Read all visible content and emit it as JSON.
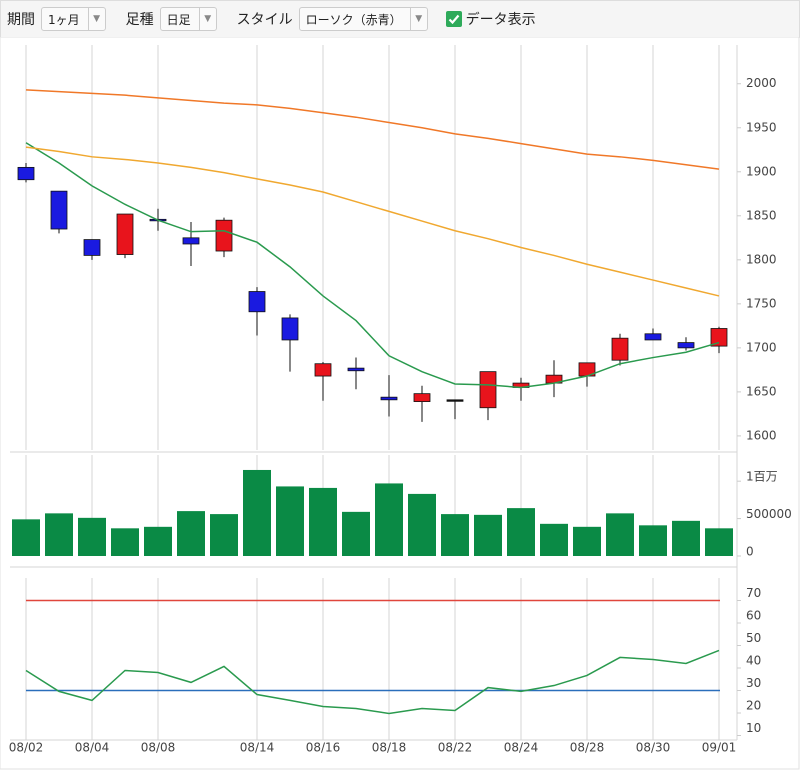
{
  "toolbar": {
    "period_label": "期間",
    "period_value": "1ヶ月",
    "bar_label": "足種",
    "bar_value": "日足",
    "style_label": "スタイル",
    "style_value": "ローソク（赤青）",
    "data_display": "データ表示",
    "data_display_checked": true
  },
  "chart_data": [
    {
      "type": "candlestick",
      "categories": [
        "08/02",
        null,
        "08/04",
        null,
        "08/08",
        null,
        null,
        "08/14",
        null,
        "08/16",
        null,
        "08/18",
        null,
        "08/22",
        null,
        "08/24",
        null,
        "08/28",
        null,
        "08/30",
        null,
        "09/01"
      ],
      "open": [
        1905,
        1878,
        1823,
        1806,
        1846,
        1825,
        1810,
        1764,
        1734,
        1668,
        1677,
        1644,
        1639,
        1641,
        1632,
        1655,
        1660,
        1668,
        1686,
        1716,
        1706,
        1702
      ],
      "high": [
        1910,
        1878,
        1823,
        1852,
        1858,
        1843,
        1848,
        1769,
        1738,
        1684,
        1689,
        1669,
        1657,
        1641,
        1673,
        1666,
        1686,
        1683,
        1716,
        1722,
        1712,
        1724
      ],
      "low": [
        1888,
        1830,
        1800,
        1802,
        1833,
        1793,
        1803,
        1714,
        1673,
        1640,
        1653,
        1622,
        1616,
        1619,
        1618,
        1640,
        1644,
        1656,
        1680,
        1709,
        1697,
        1694
      ],
      "close": [
        1891,
        1835,
        1805,
        1852,
        1845,
        1818,
        1845,
        1741,
        1709,
        1682,
        1674,
        1641,
        1648,
        1641,
        1673,
        1660,
        1669,
        1683,
        1711,
        1709,
        1700,
        1722
      ],
      "up_color": "#e8141c",
      "down_color": "#1a1ae0",
      "flat_color": "#111111",
      "series": [
        {
          "color": "#2a9a4e",
          "values": [
            1933,
            1910,
            1884,
            1863,
            1845,
            1832,
            1833,
            1820,
            1792,
            1759,
            1731,
            1691,
            1673,
            1659,
            1658,
            1655,
            1660,
            1668,
            1682,
            1689,
            1695,
            1706
          ]
        },
        {
          "color": "#f0a830",
          "values": [
            1928,
            1923,
            1917,
            1914,
            1910,
            1905,
            1899,
            1892,
            1885,
            1877,
            1866,
            1855,
            1844,
            1833,
            1824,
            1814,
            1805,
            1795,
            1786,
            1777,
            1768,
            1759
          ]
        },
        {
          "color": "#f07828",
          "values": [
            1993,
            1991,
            1989,
            1987,
            1984,
            1981,
            1978,
            1976,
            1972,
            1967,
            1962,
            1956,
            1950,
            1943,
            1938,
            1932,
            1926,
            1920,
            1917,
            1913,
            1908,
            1903
          ]
        }
      ],
      "ylim": [
        1584,
        2044
      ],
      "yticks": [
        1600,
        1650,
        1700,
        1750,
        1800,
        1850,
        1900,
        1950,
        2000
      ],
      "grid": "x"
    },
    {
      "type": "bar",
      "color": "#0a8a45",
      "values": [
        490000,
        570000,
        510000,
        370000,
        390000,
        600000,
        560000,
        1150000,
        930000,
        910000,
        590000,
        970000,
        830000,
        560000,
        550000,
        640000,
        430000,
        390000,
        570000,
        410000,
        470000,
        370000
      ],
      "ylim": [
        0,
        1350000
      ],
      "yticks": [
        0,
        500000,
        {
          "value": 1000000,
          "label": "1百万"
        }
      ],
      "grid": "x"
    },
    {
      "type": "line",
      "color": "#2a9a4e",
      "values": [
        38.9,
        29.6,
        25.6,
        38.9,
        38,
        33.6,
        40.7,
        28.2,
        25.6,
        22.9,
        22,
        19.8,
        22,
        21.1,
        31.3,
        29.6,
        32.2,
        36.7,
        44.7,
        43.8,
        42,
        47.8
      ],
      "ref_lines": [
        {
          "value": 70,
          "color": "#e0463c"
        },
        {
          "value": 30,
          "color": "#2a6ebb"
        }
      ],
      "ylim": [
        8,
        80
      ],
      "yticks": [
        10,
        20,
        30,
        40,
        50,
        60,
        70
      ],
      "grid": "x"
    }
  ]
}
